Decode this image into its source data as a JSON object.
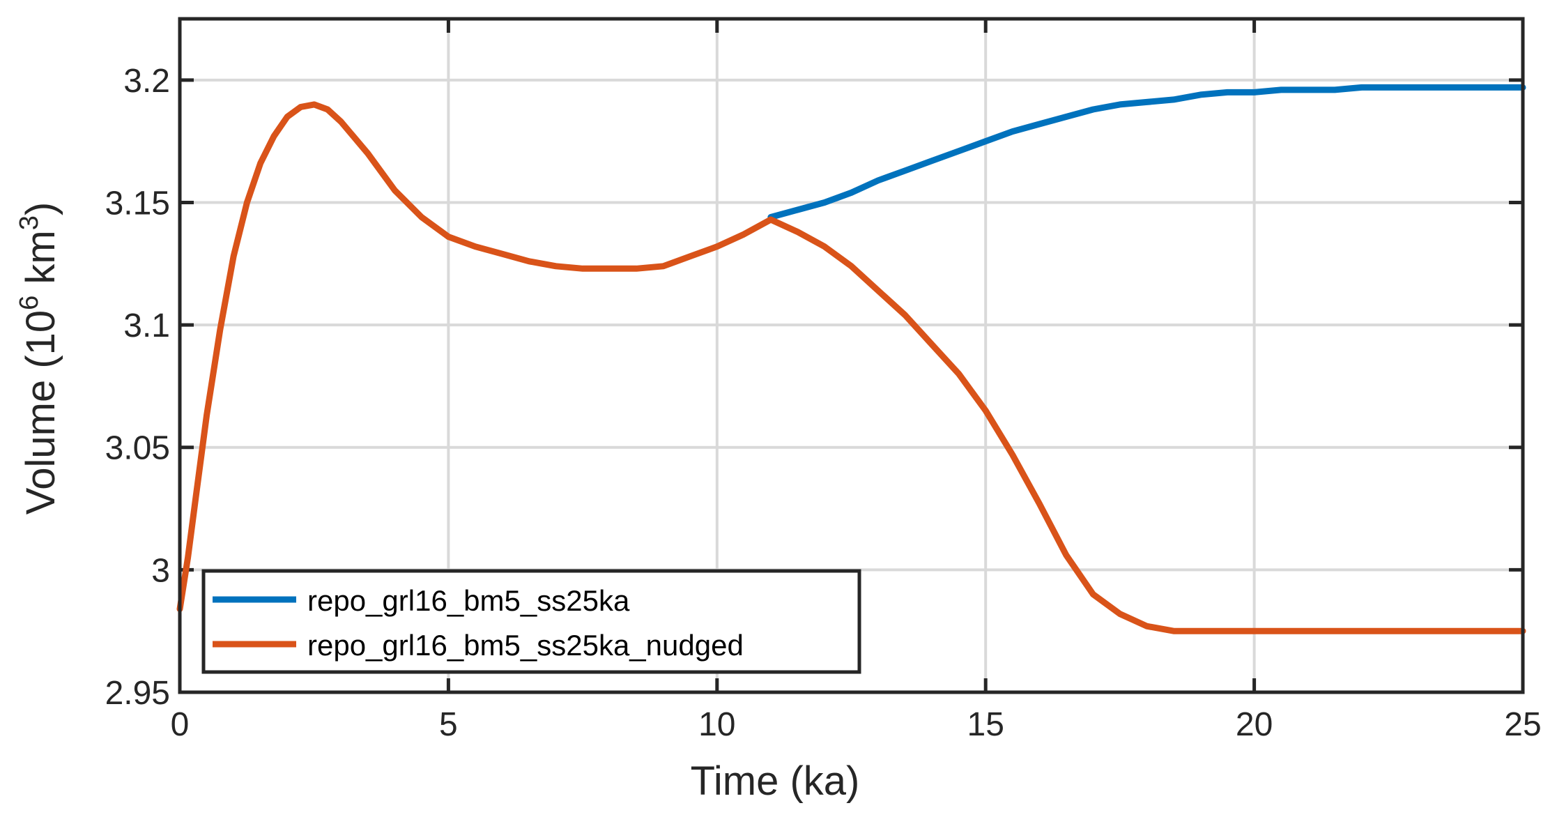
{
  "chart_data": {
    "type": "line",
    "xlabel": "Time (ka)",
    "ylabel": {
      "prefix": "Volume (10",
      "sup1": "6",
      "mid": " km",
      "sup2": "3",
      "suffix": ")"
    },
    "xlim": [
      0,
      25
    ],
    "ylim": [
      2.95,
      3.225
    ],
    "xticks": [
      0,
      5,
      10,
      15,
      20,
      25
    ],
    "xtick_labels": [
      "0",
      "5",
      "10",
      "15",
      "20",
      "25"
    ],
    "yticks": [
      2.95,
      3.0,
      3.05,
      3.1,
      3.15,
      3.2
    ],
    "ytick_labels": [
      "2.95",
      "3",
      "3.05",
      "3.1",
      "3.15",
      "3.2"
    ],
    "grid": true,
    "legend_location": "bottom-left",
    "series": [
      {
        "name": "repo_grl16_bm5_ss25ka",
        "color": "#0072BD",
        "x": [
          11.0,
          11.5,
          12.0,
          12.5,
          13.0,
          13.5,
          14.0,
          14.5,
          15.0,
          15.5,
          16.0,
          16.5,
          17.0,
          17.5,
          18.0,
          18.5,
          19.0,
          19.5,
          20.0,
          20.5,
          21.0,
          21.5,
          22.0,
          22.5,
          23.0,
          23.5,
          24.0,
          24.5,
          25.0
        ],
        "y": [
          3.144,
          3.147,
          3.15,
          3.154,
          3.159,
          3.163,
          3.167,
          3.171,
          3.175,
          3.179,
          3.182,
          3.185,
          3.188,
          3.19,
          3.191,
          3.192,
          3.194,
          3.195,
          3.195,
          3.196,
          3.196,
          3.196,
          3.197,
          3.197,
          3.197,
          3.197,
          3.197,
          3.197,
          3.197
        ]
      },
      {
        "name": "repo_grl16_bm5_ss25ka_nudged",
        "color": "#D95319",
        "x": [
          0.0,
          0.15,
          0.3,
          0.5,
          0.75,
          1.0,
          1.25,
          1.5,
          1.75,
          2.0,
          2.25,
          2.5,
          2.75,
          3.0,
          3.5,
          4.0,
          4.5,
          5.0,
          5.5,
          6.0,
          6.5,
          7.0,
          7.5,
          8.0,
          8.5,
          9.0,
          9.5,
          10.0,
          10.5,
          11.0,
          11.5,
          12.0,
          12.5,
          13.0,
          13.5,
          14.0,
          14.5,
          15.0,
          15.5,
          16.0,
          16.5,
          17.0,
          17.5,
          18.0,
          18.5,
          19.0,
          19.5,
          20.0,
          21.0,
          22.0,
          23.0,
          24.0,
          25.0
        ],
        "y": [
          2.984,
          3.005,
          3.03,
          3.063,
          3.098,
          3.128,
          3.15,
          3.166,
          3.177,
          3.185,
          3.189,
          3.19,
          3.188,
          3.183,
          3.17,
          3.155,
          3.144,
          3.136,
          3.132,
          3.129,
          3.126,
          3.124,
          3.123,
          3.123,
          3.123,
          3.124,
          3.128,
          3.132,
          3.137,
          3.143,
          3.138,
          3.132,
          3.124,
          3.114,
          3.104,
          3.092,
          3.08,
          3.065,
          3.047,
          3.027,
          3.006,
          2.99,
          2.982,
          2.977,
          2.975,
          2.975,
          2.975,
          2.975,
          2.975,
          2.975,
          2.975,
          2.975,
          2.975
        ]
      }
    ]
  }
}
